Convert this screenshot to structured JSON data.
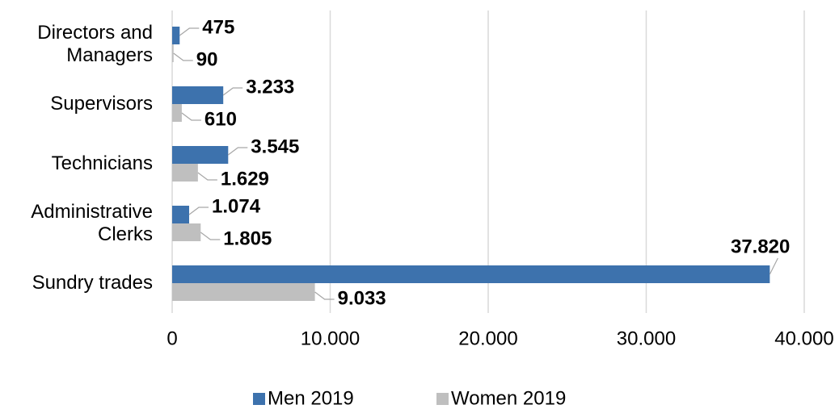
{
  "chart_data": {
    "type": "bar",
    "orientation": "horizontal",
    "categories": [
      "Directors and Managers",
      "Supervisors",
      "Technicians",
      "Administrative Clerks",
      "Sundry trades"
    ],
    "series": [
      {
        "name": "Men 2019",
        "color": "#3d72ad",
        "values": [
          475,
          3233,
          3545,
          1074,
          37820
        ],
        "value_labels": [
          "475",
          "3.233",
          "3.545",
          "1.074",
          "37.820"
        ]
      },
      {
        "name": "Women 2019",
        "color": "#bfbfbf",
        "values": [
          90,
          610,
          1629,
          1805,
          9033
        ],
        "value_labels": [
          "90",
          "610",
          "1.629",
          "1.805",
          "9.033"
        ]
      }
    ],
    "xlim": [
      0,
      40000
    ],
    "xticks": [
      0,
      {
        "value": 10000,
        "label": "10.000"
      },
      {
        "value": 20000,
        "label": "20.000"
      },
      {
        "value": 30000,
        "label": "30.000"
      },
      {
        "value": 40000,
        "label": "40.000"
      }
    ],
    "grid": true,
    "legend": "bottom"
  }
}
